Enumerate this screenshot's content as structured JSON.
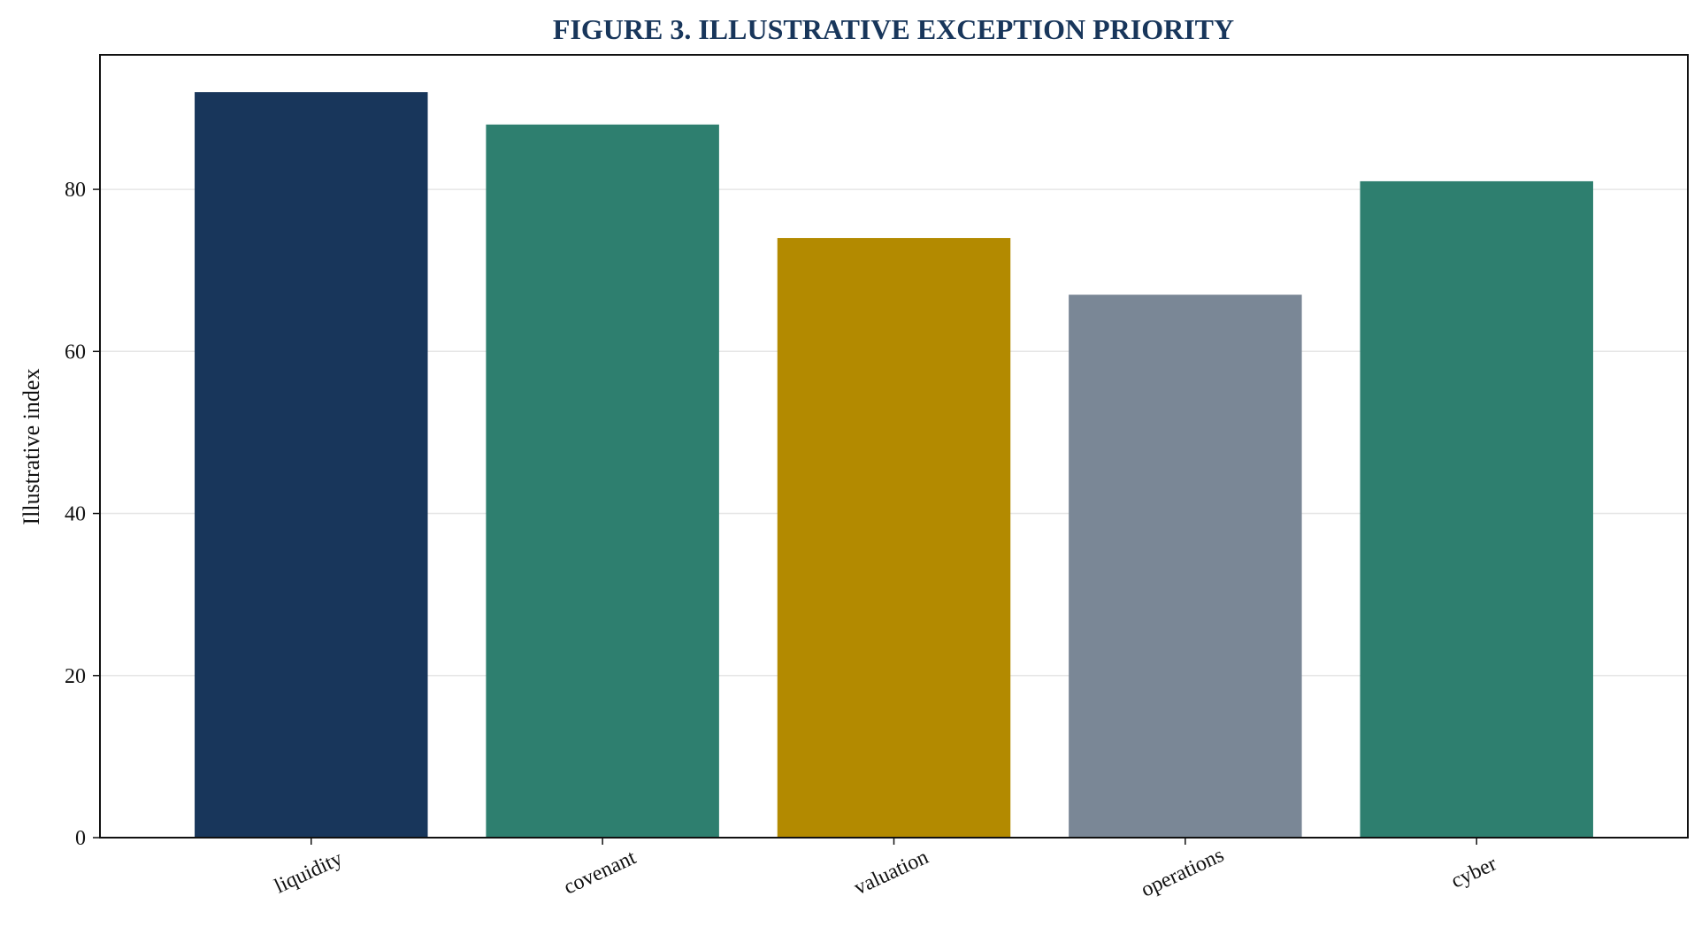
{
  "chart_data": {
    "type": "bar",
    "title": "FIGURE 3. ILLUSTRATIVE EXCEPTION PRIORITY",
    "xlabel": "",
    "ylabel": "Illustrative index",
    "categories": [
      "liquidity",
      "covenant",
      "valuation",
      "operations",
      "cyber"
    ],
    "values": [
      92,
      88,
      74,
      67,
      81
    ],
    "bar_colors": [
      "#18365b",
      "#2e7f6f",
      "#b38a00",
      "#7a8796",
      "#2e7f6f"
    ],
    "ylim": [
      0,
      96.6
    ],
    "yticks": [
      0,
      20,
      40,
      60,
      80
    ],
    "ytick_labels": [
      "0",
      "20",
      "40",
      "60",
      "80"
    ],
    "grid": true,
    "title_color": "#18365b"
  }
}
